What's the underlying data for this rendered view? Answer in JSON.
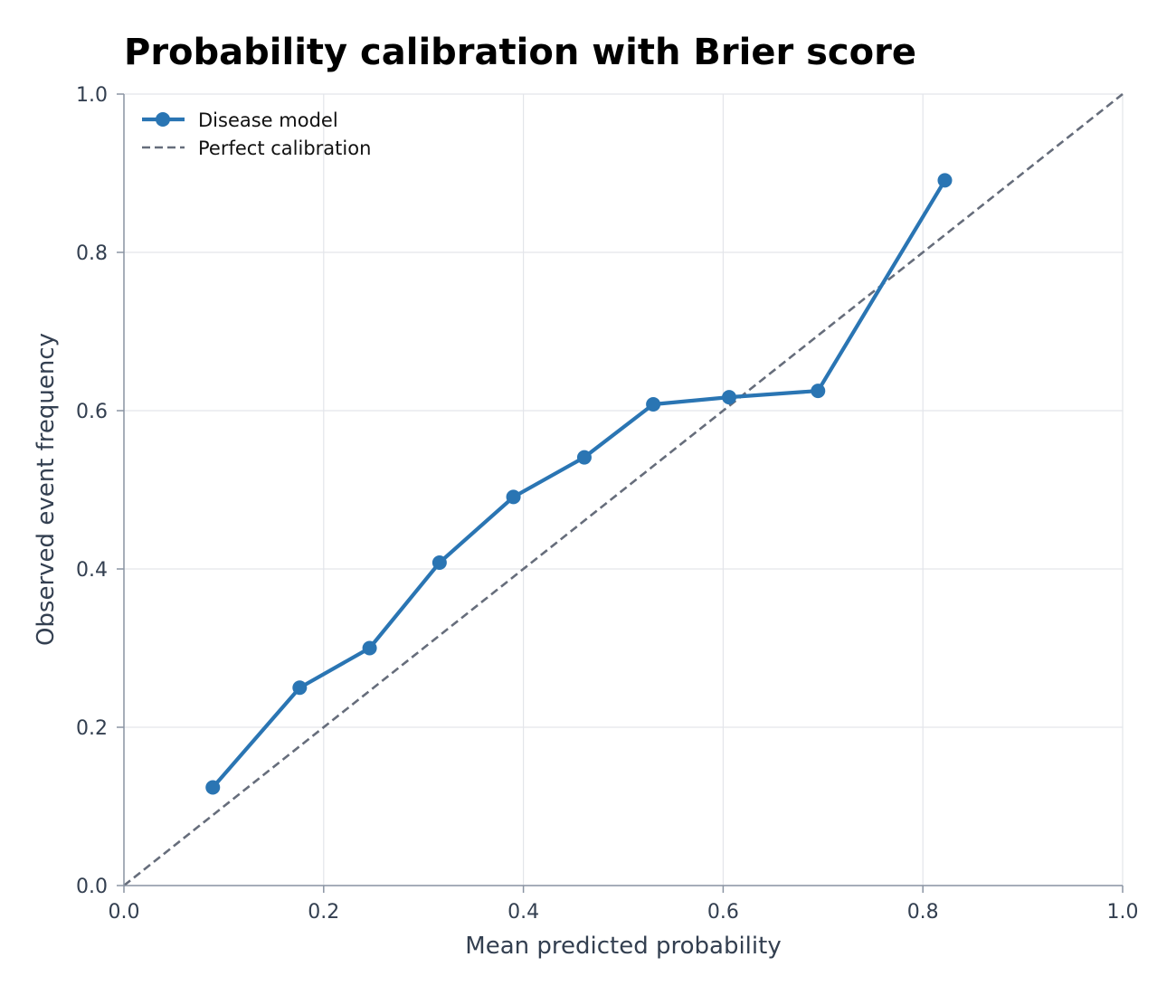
{
  "chart_data": {
    "type": "line",
    "title": "Probability calibration with Brier score",
    "xlabel": "Mean predicted probability",
    "ylabel": "Observed event frequency",
    "xlim": [
      0.0,
      1.0
    ],
    "ylim": [
      0.0,
      1.0
    ],
    "xticks": [
      "0.0",
      "0.2",
      "0.4",
      "0.6",
      "0.8",
      "1.0"
    ],
    "yticks": [
      "0.0",
      "0.2",
      "0.4",
      "0.6",
      "0.8",
      "1.0"
    ],
    "grid": true,
    "legend_position": "top-left",
    "series": [
      {
        "name": "Disease model",
        "style": "solid-with-markers",
        "color": "#2a75b3",
        "x": [
          0.089,
          0.176,
          0.246,
          0.316,
          0.39,
          0.461,
          0.53,
          0.606,
          0.695,
          0.822
        ],
        "y": [
          0.124,
          0.25,
          0.3,
          0.408,
          0.491,
          0.541,
          0.608,
          0.617,
          0.625,
          0.891
        ]
      },
      {
        "name": "Perfect calibration",
        "style": "dashed",
        "color": "#666d7b",
        "x": [
          0.0,
          1.0
        ],
        "y": [
          0.0,
          1.0
        ]
      }
    ]
  }
}
